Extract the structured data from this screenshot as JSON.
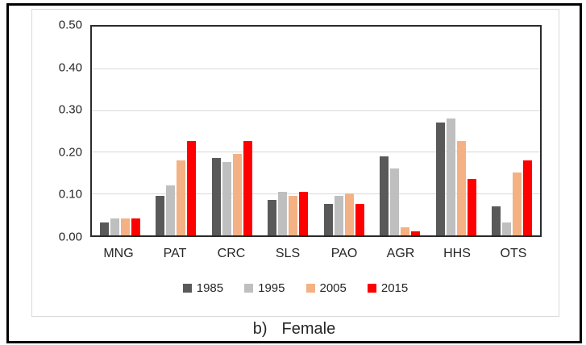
{
  "figure": {
    "caption_prefix": "b)",
    "caption_text": "Female"
  },
  "chart_data": {
    "type": "bar",
    "title": "",
    "xlabel": "",
    "ylabel": "",
    "categories": [
      "MNG",
      "PAT",
      "CRC",
      "SLS",
      "PAO",
      "AGR",
      "HHS",
      "OTS"
    ],
    "series": [
      {
        "name": "1985",
        "color": "#595959",
        "values": [
          0.03,
          0.095,
          0.185,
          0.085,
          0.075,
          0.19,
          0.27,
          0.07
        ]
      },
      {
        "name": "1995",
        "color": "#bfbfbf",
        "values": [
          0.04,
          0.12,
          0.175,
          0.105,
          0.095,
          0.16,
          0.28,
          0.03
        ]
      },
      {
        "name": "2005",
        "color": "#f4b183",
        "values": [
          0.04,
          0.18,
          0.195,
          0.095,
          0.1,
          0.02,
          0.225,
          0.15
        ]
      },
      {
        "name": "2015",
        "color": "#ff0000",
        "values": [
          0.04,
          0.225,
          0.225,
          0.105,
          0.075,
          0.01,
          0.135,
          0.18
        ]
      }
    ],
    "ylim": [
      0,
      0.5
    ],
    "ytick_labels": [
      "0.50",
      "0.40",
      "0.30",
      "0.20",
      "0.10",
      "0.00"
    ],
    "grid": true,
    "legend_position": "bottom"
  }
}
